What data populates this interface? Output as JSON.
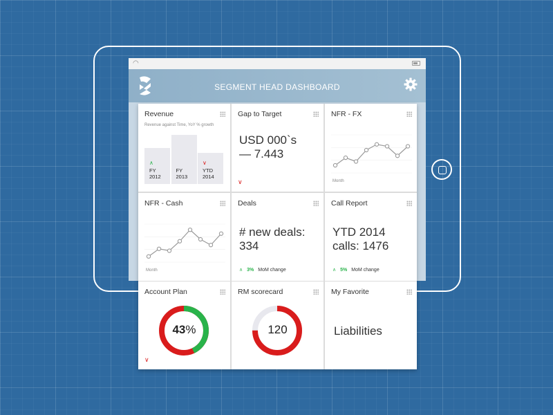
{
  "header": {
    "title": "SEGMENT HEAD DASHBOARD"
  },
  "colors": {
    "accent_green": "#29b34a",
    "accent_red": "#d91c1c",
    "background": "#2f6aa0"
  },
  "icons": {
    "logo": "bank-logo-icon",
    "settings": "gear-icon",
    "wifi": "wifi-icon",
    "battery": "battery-icon"
  },
  "cards": {
    "revenue": {
      "title": "Revenue",
      "subtitle": "Revenue against Time, YoY % growth",
      "bars": [
        {
          "line1": "FY",
          "line2": "2012",
          "trend": "up",
          "level": 0.72
        },
        {
          "line1": "FY",
          "line2": "2013",
          "trend": "none",
          "level": 0.98
        },
        {
          "line1": "YTD",
          "line2": "2014",
          "trend": "down",
          "level": 0.62
        }
      ]
    },
    "gap": {
      "title": "Gap to Target",
      "line1": "USD 000`s",
      "line2": "— 7.443",
      "trend": "down"
    },
    "nfr_fx": {
      "title": "NFR - FX",
      "xlabel": "Month",
      "values": [
        2,
        4,
        3,
        6,
        7.5,
        7,
        4.5,
        7
      ]
    },
    "nfr_cash": {
      "title": "NFR - Cash",
      "xlabel": "Month",
      "values": [
        1.5,
        3.5,
        3,
        5.5,
        8.5,
        6,
        4.5,
        7.5
      ]
    },
    "deals": {
      "title": "Deals",
      "line1": "# new deals:",
      "line2": "334",
      "change_pct": "3%",
      "change_label": "MoM change"
    },
    "call_report": {
      "title": "Call Report",
      "line1": "YTD 2014",
      "line2": "calls: 1476",
      "change_pct": "5%",
      "change_label": "MoM change"
    },
    "account_plan": {
      "title": "Account Plan",
      "value_num": "43",
      "value_unit": "%",
      "fraction": 0.43,
      "trend": "down"
    },
    "rm_scorecard": {
      "title": "RM scorecard",
      "value": "120",
      "fraction": 0.75
    },
    "favorite": {
      "title": "My Favorite",
      "text": "Liabilities"
    }
  }
}
